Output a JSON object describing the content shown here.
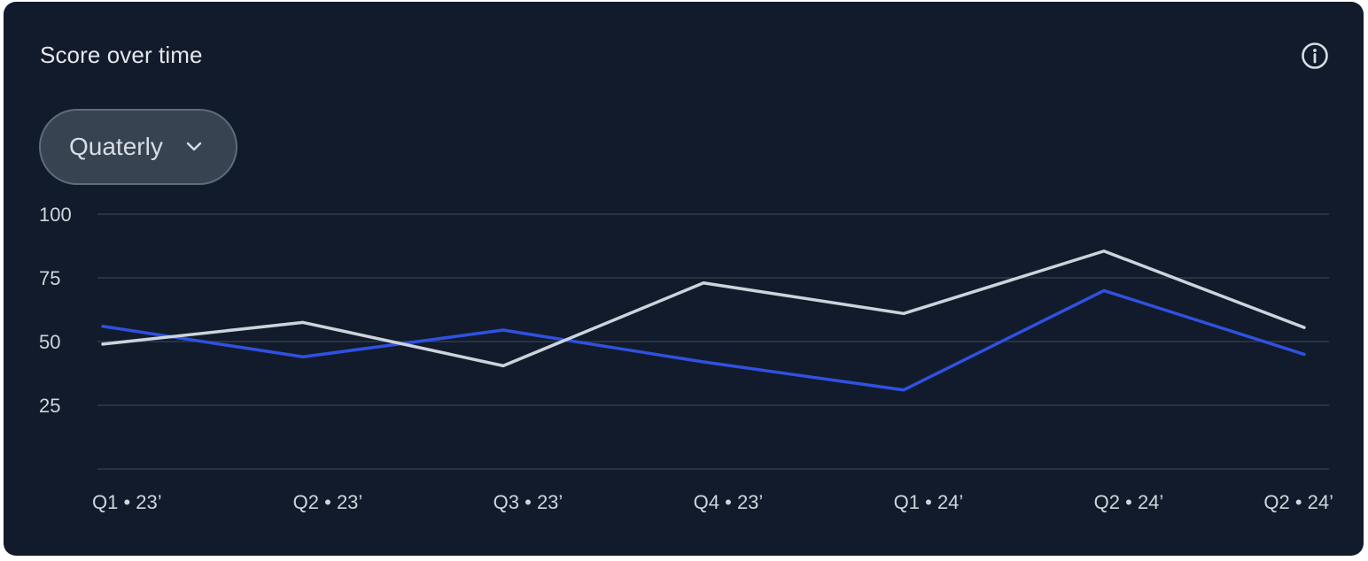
{
  "card": {
    "title": "Score over time"
  },
  "controls": {
    "period_select": {
      "selected": "Quaterly"
    }
  },
  "icons": {
    "info": "info-icon",
    "chevron": "chevron-down-icon"
  },
  "colors": {
    "background": "#121b2b",
    "series_primary": "#2f51e0",
    "series_secondary": "#cdd3dc",
    "grid": "#2f3a4b"
  },
  "chart_data": {
    "type": "line",
    "categories": [
      "Q1 • 23’",
      "Q2 • 23’",
      "Q3 • 23’",
      "Q4 • 23’",
      "Q1 • 24’",
      "Q2 • 24’",
      "Q2 • 24’"
    ],
    "series": [
      {
        "values": [
          56,
          44,
          54.5,
          42,
          31,
          70,
          45
        ],
        "color": "#2f51e0"
      },
      {
        "values": [
          49,
          57.5,
          40.5,
          73,
          61,
          85.5,
          55.5
        ],
        "color": "#cdd3dc"
      }
    ],
    "yticks": [
      "100",
      "75",
      "50",
      "25"
    ],
    "ylim": [
      0,
      100
    ],
    "grid": true,
    "legend": "none"
  }
}
